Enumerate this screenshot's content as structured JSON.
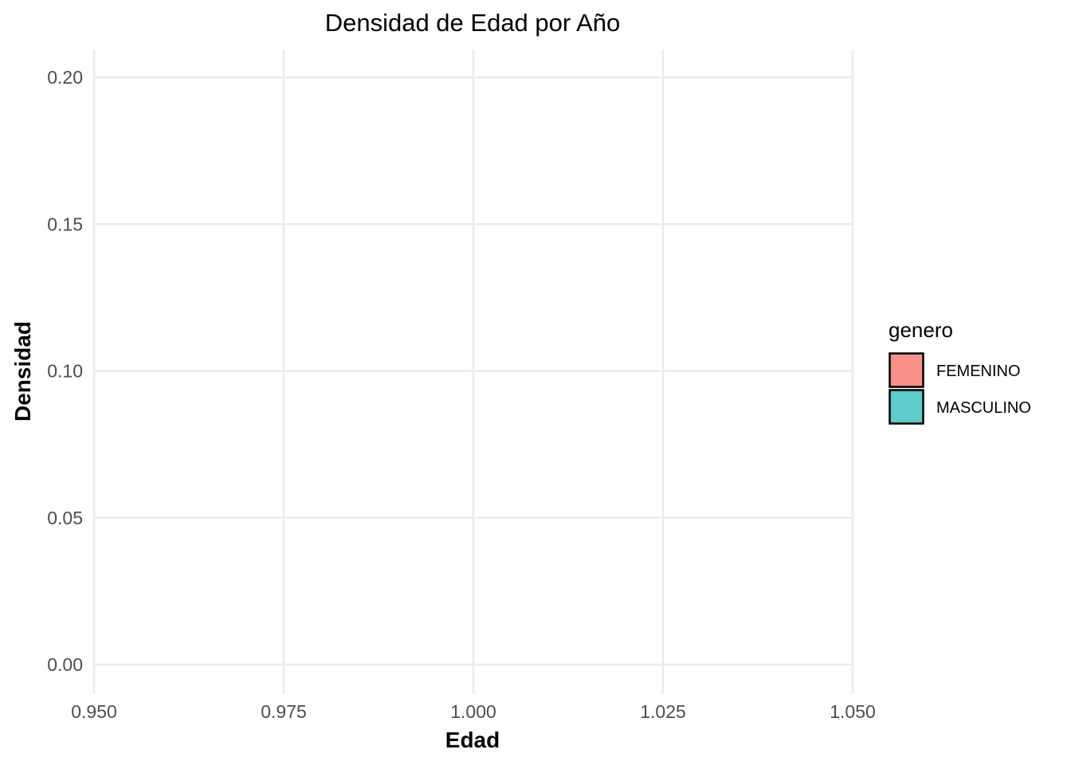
{
  "chart_data": {
    "type": "area",
    "title": "Densidad de Edad por Año",
    "xlabel": "Edad",
    "ylabel": "Densidad",
    "xlim": [
      0.95,
      1.05
    ],
    "ylim": [
      0.0,
      0.2
    ],
    "x_ticks": [
      "0.950",
      "0.975",
      "1.000",
      "1.025",
      "1.050"
    ],
    "x_tick_values": [
      0.95,
      0.975,
      1.0,
      1.025,
      1.05
    ],
    "y_ticks": [
      "0.00",
      "0.05",
      "0.10",
      "0.15",
      "0.20"
    ],
    "y_tick_values": [
      0.0,
      0.05,
      0.1,
      0.15,
      0.2
    ],
    "grid": true,
    "legend": {
      "title": "genero",
      "placement": "right",
      "entries": [
        {
          "label": "FEMENINO",
          "color": "#f8918a"
        },
        {
          "label": "MASCULINO",
          "color": "#5ecbcd"
        }
      ]
    },
    "series": []
  }
}
